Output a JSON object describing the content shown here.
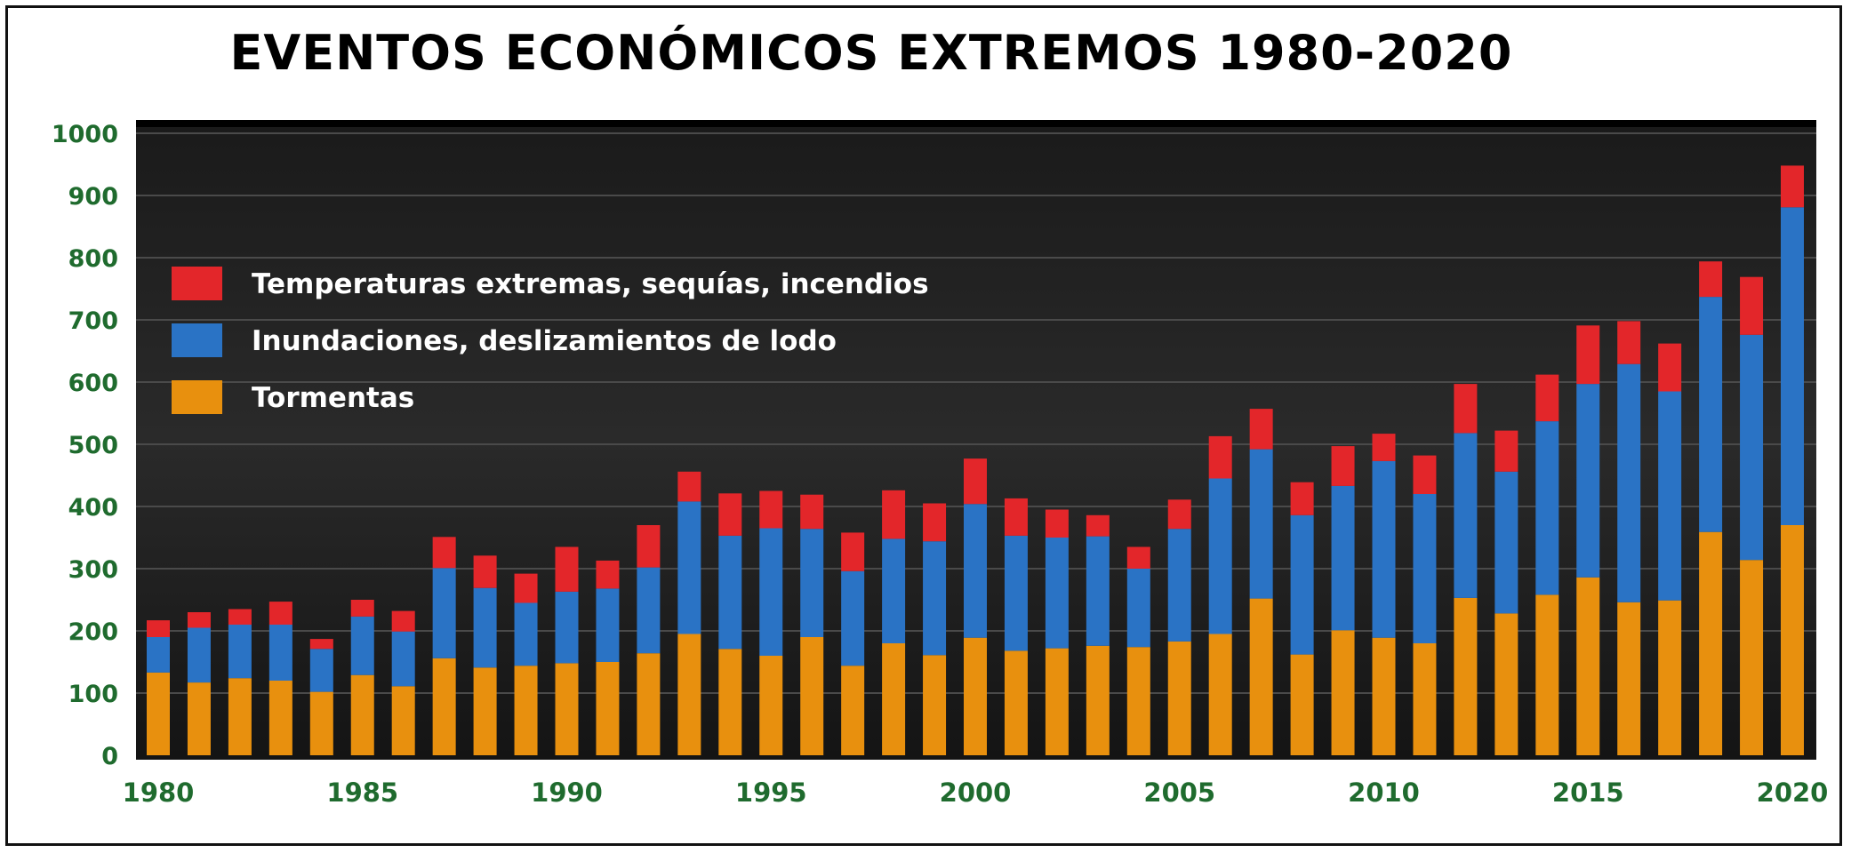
{
  "chart_data": {
    "type": "bar",
    "stacked": true,
    "title": "EVENTOS ECONÓMICOS EXTREMOS 1980-2020",
    "x": [
      1980,
      1981,
      1982,
      1983,
      1984,
      1985,
      1986,
      1987,
      1988,
      1989,
      1990,
      1991,
      1992,
      1993,
      1994,
      1995,
      1996,
      1997,
      1998,
      1999,
      2000,
      2001,
      2002,
      2003,
      2004,
      2005,
      2006,
      2007,
      2008,
      2009,
      2010,
      2011,
      2012,
      2013,
      2014,
      2015,
      2016,
      2017,
      2018,
      2019,
      2020
    ],
    "x_tick_labels": [
      "1980",
      "1985",
      "1990",
      "1995",
      "2000",
      "2005",
      "2010",
      "2015",
      "2020"
    ],
    "y_tick_labels": [
      "0",
      "100",
      "200",
      "300",
      "400",
      "500",
      "600",
      "700",
      "800",
      "900",
      "1000"
    ],
    "ylim": [
      0,
      1000
    ],
    "grid": true,
    "legend_position": "top-left",
    "series": [
      {
        "name": "Tormentas",
        "color": "#e8900e",
        "values": [
          133,
          117,
          124,
          120,
          102,
          129,
          111,
          156,
          141,
          144,
          148,
          150,
          164,
          195,
          171,
          160,
          190,
          144,
          180,
          161,
          189,
          168,
          172,
          176,
          174,
          183,
          195,
          252,
          162,
          201,
          189,
          180,
          253,
          228,
          258,
          286,
          246,
          249,
          359,
          314,
          370
        ]
      },
      {
        "name": "Inundaciones, deslizamientos de lodo",
        "color": "#2a73c5",
        "values": [
          57,
          88,
          86,
          90,
          69,
          94,
          88,
          145,
          128,
          101,
          115,
          118,
          138,
          213,
          182,
          205,
          174,
          152,
          168,
          183,
          215,
          185,
          178,
          176,
          126,
          181,
          250,
          240,
          224,
          232,
          284,
          240,
          265,
          228,
          279,
          311,
          383,
          336,
          378,
          362,
          511
        ]
      },
      {
        "name": "Temperaturas extremas, sequías, incendios",
        "color": "#e3262a",
        "values": [
          27,
          25,
          25,
          37,
          16,
          27,
          33,
          50,
          52,
          47,
          72,
          45,
          68,
          48,
          68,
          60,
          55,
          62,
          78,
          61,
          73,
          60,
          45,
          34,
          35,
          47,
          68,
          65,
          53,
          64,
          44,
          62,
          79,
          66,
          75,
          94,
          69,
          77,
          57,
          93,
          67
        ]
      }
    ]
  }
}
